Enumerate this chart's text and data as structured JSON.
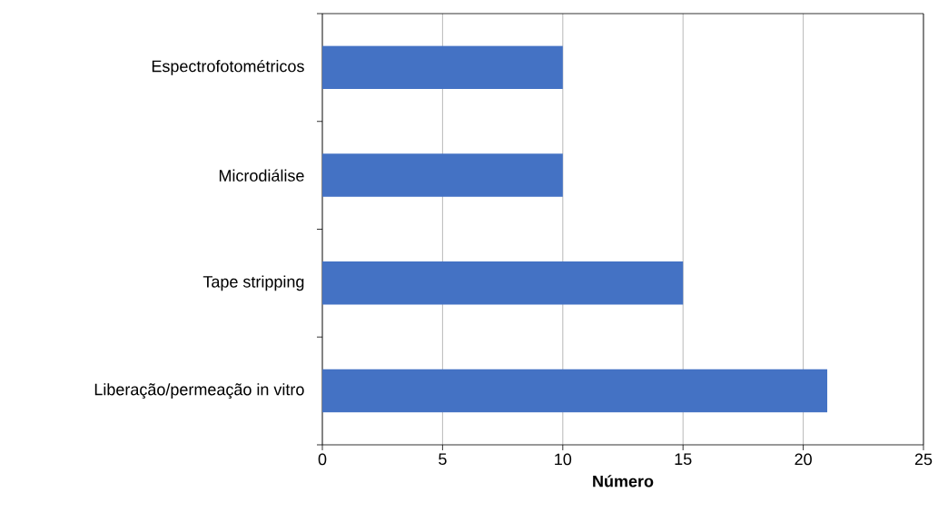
{
  "chart_data": {
    "type": "bar",
    "orientation": "horizontal",
    "xlabel": "Número",
    "categories": [
      "Espectrofotométricos",
      "Microdiálise",
      "Tape stripping",
      "Liberação/permeação in vitro"
    ],
    "values": [
      10,
      10,
      15,
      21
    ],
    "color": "#4472c4",
    "xlim": [
      0,
      25
    ],
    "xticks": [
      0,
      5,
      10,
      15,
      20,
      25
    ],
    "grid": "x"
  }
}
